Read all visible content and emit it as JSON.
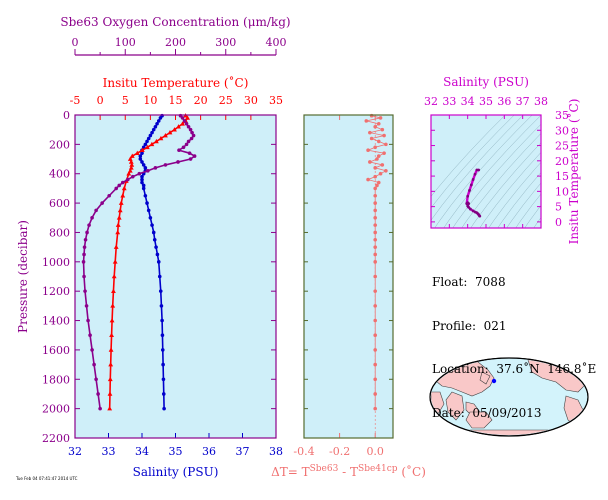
{
  "colors": {
    "plot_bg": "#cfeff9",
    "salinity": "#0000cc",
    "temperature": "#ff0000",
    "oxygen": "#8b008b",
    "magenta": "#cc00cc",
    "diff": "#f07070",
    "frame_dark": "#556b2f",
    "land": "#f9c8c8",
    "ocean": "#d3f3fb"
  },
  "info": {
    "float": "Float:  7088",
    "profile": "Profile:  021",
    "location": "Location:  37.6˚N  146.8˚E",
    "date": "Date:  05/09/2013",
    "stamp": "Tue Feb 04 07:41:47 2014 UTC"
  },
  "chart_data": [
    {
      "type": "line",
      "panel": "main profile",
      "title": "",
      "ylabel": "Pressure (decibar)",
      "ylim": [
        2200,
        0
      ],
      "y_ticks": [
        0,
        200,
        400,
        600,
        800,
        1000,
        1200,
        1400,
        1600,
        1800,
        2000,
        2200
      ],
      "axes": {
        "salinity": {
          "label": "Salinity (PSU)",
          "lim": [
            32,
            38
          ],
          "ticks": [
            32,
            33,
            34,
            35,
            36,
            37,
            38
          ],
          "position": "bottom"
        },
        "temperature": {
          "label": "Insitu Temperature (˚C)",
          "lim": [
            -5,
            35
          ],
          "ticks": [
            -5,
            0,
            5,
            10,
            15,
            20,
            25,
            30,
            35
          ],
          "position": "top"
        },
        "oxygen": {
          "label": "Sbe63 Oxygen Concentration (μm/kg)",
          "lim": [
            0,
            400
          ],
          "ticks": [
            0,
            100,
            200,
            300,
            400
          ],
          "position": "top-outer"
        }
      },
      "series": [
        {
          "name": "Salinity (PSU)",
          "axis": "salinity",
          "pressure": [
            5,
            20,
            40,
            60,
            80,
            100,
            120,
            140,
            160,
            180,
            200,
            220,
            240,
            260,
            280,
            300,
            320,
            340,
            360,
            380,
            400,
            420,
            440,
            460,
            480,
            500,
            550,
            600,
            650,
            700,
            750,
            800,
            850,
            900,
            950,
            1000,
            1100,
            1200,
            1300,
            1400,
            1500,
            1600,
            1700,
            1800,
            1900,
            2000
          ],
          "values": [
            34.6,
            34.55,
            34.5,
            34.45,
            34.4,
            34.35,
            34.3,
            34.25,
            34.2,
            34.15,
            34.1,
            34.05,
            34.0,
            34.0,
            33.95,
            33.95,
            34.0,
            34.05,
            34.1,
            34.1,
            34.05,
            34.0,
            34.0,
            34.0,
            34.05,
            34.05,
            34.1,
            34.15,
            34.2,
            34.25,
            34.3,
            34.35,
            34.38,
            34.42,
            34.46,
            34.5,
            34.53,
            34.56,
            34.58,
            34.6,
            34.61,
            34.62,
            34.63,
            34.64,
            34.65,
            34.66
          ]
        },
        {
          "name": "Insitu Temperature (˚C)",
          "axis": "temperature",
          "pressure": [
            5,
            20,
            40,
            60,
            80,
            100,
            120,
            140,
            160,
            180,
            200,
            220,
            240,
            260,
            280,
            300,
            320,
            340,
            360,
            380,
            400,
            450,
            500,
            550,
            600,
            650,
            700,
            750,
            800,
            900,
            1000,
            1100,
            1200,
            1300,
            1400,
            1500,
            1600,
            1700,
            1800,
            1900,
            2000
          ],
          "values": [
            17.0,
            17.4,
            17.0,
            16.4,
            15.6,
            14.8,
            13.9,
            13.0,
            12.1,
            11.2,
            10.3,
            9.4,
            8.4,
            7.4,
            6.4,
            6.0,
            6.2,
            6.3,
            6.2,
            6.0,
            5.7,
            5.2,
            4.8,
            4.5,
            4.2,
            4.0,
            3.8,
            3.6,
            3.5,
            3.2,
            3.0,
            2.8,
            2.65,
            2.5,
            2.38,
            2.28,
            2.18,
            2.1,
            2.02,
            1.96,
            1.9
          ]
        },
        {
          "name": "Sbe63 Oxygen Concentration (μm/kg)",
          "axis": "oxygen",
          "pressure": [
            5,
            20,
            40,
            60,
            80,
            100,
            120,
            140,
            160,
            180,
            200,
            220,
            240,
            260,
            280,
            300,
            320,
            340,
            360,
            380,
            400,
            420,
            440,
            460,
            480,
            500,
            550,
            600,
            650,
            700,
            750,
            800,
            850,
            900,
            950,
            1000,
            1100,
            1200,
            1300,
            1400,
            1500,
            1600,
            1700,
            1800,
            1900,
            2000
          ],
          "values": [
            210,
            214,
            218,
            222,
            226,
            230,
            233,
            236,
            232,
            226,
            222,
            216,
            207,
            228,
            238,
            230,
            205,
            180,
            160,
            145,
            128,
            115,
            105,
            95,
            88,
            82,
            68,
            54,
            42,
            34,
            28,
            24,
            21,
            19,
            18,
            17,
            18,
            20,
            23,
            26,
            30,
            34,
            38,
            42,
            46,
            50
          ]
        }
      ]
    },
    {
      "type": "scatter",
      "panel": "temperature difference",
      "title": "",
      "xlabel": "ΔT= T^Sbe63 - T^Sbe41cp (˚C)",
      "xlim": [
        -0.4,
        0.1
      ],
      "x_ticks": [
        -0.4,
        -0.2,
        0.0
      ],
      "ylim": [
        2200,
        0
      ],
      "series": [
        {
          "name": "",
          "pressure": [
            5,
            20,
            40,
            60,
            80,
            100,
            120,
            140,
            160,
            180,
            200,
            220,
            240,
            260,
            280,
            300,
            320,
            340,
            360,
            380,
            400,
            420,
            440,
            460,
            480,
            500,
            550,
            600,
            650,
            700,
            750,
            800,
            850,
            900,
            950,
            1000,
            1100,
            1200,
            1300,
            1400,
            1500,
            1600,
            1700,
            1800,
            1900,
            2000
          ],
          "values": [
            -0.02,
            0.03,
            -0.05,
            0.02,
            0.0,
            0.04,
            -0.03,
            0.05,
            -0.02,
            0.02,
            0.06,
            0.0,
            -0.04,
            0.05,
            0.02,
            0.01,
            -0.03,
            0.04,
            0.0,
            0.06,
            0.03,
            0.0,
            -0.04,
            0.02,
            0.01,
            0.0,
            0.0,
            0.0,
            0.0,
            0.0,
            0.0,
            0.0,
            0.0,
            0.0,
            0.0,
            0.0,
            0.0,
            0.0,
            0.0,
            0.0,
            0.0,
            0.0,
            0.0,
            0.0,
            0.0,
            0.0
          ]
        }
      ]
    },
    {
      "type": "line",
      "panel": "T-S diagram",
      "title": "",
      "xlabel": "Salinity (PSU)",
      "ylabel": "Insitu Temperature (˚C)",
      "xlim": [
        32,
        38
      ],
      "x_ticks": [
        32,
        33,
        34,
        35,
        36,
        37,
        38
      ],
      "ylim": [
        -2,
        35
      ],
      "y_ticks": [
        0,
        5,
        10,
        15,
        20,
        25,
        30,
        35
      ],
      "series": [
        {
          "name": "",
          "salinity": [
            34.6,
            34.5,
            34.4,
            34.3,
            34.2,
            34.1,
            34.0,
            33.95,
            34.0,
            34.05,
            34.0,
            34.05,
            34.15,
            34.3,
            34.42,
            34.5,
            34.56,
            34.6,
            34.63,
            34.66
          ],
          "temperature": [
            17.0,
            17.0,
            15.6,
            13.9,
            12.1,
            10.3,
            8.4,
            6.0,
            6.3,
            6.0,
            5.2,
            4.8,
            4.2,
            3.6,
            3.2,
            3.0,
            2.65,
            2.38,
            2.1,
            1.9
          ]
        }
      ]
    }
  ]
}
